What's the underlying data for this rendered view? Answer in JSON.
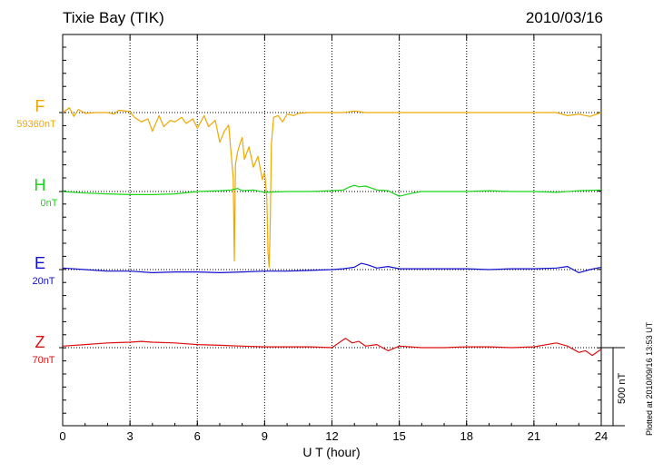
{
  "title": "Tixie Bay (TIK)",
  "date": "2010/03/16",
  "footer": "Plotted at 2010/09/16 13:53 UT",
  "chart_data": {
    "type": "line",
    "xlabel": "U T (hour)",
    "xlim": [
      0,
      24
    ],
    "xticks": [
      "0",
      "3",
      "6",
      "9",
      "12",
      "15",
      "18",
      "21",
      "24"
    ],
    "scale_bar_label": "500 nT",
    "scale_bar_nt": 500,
    "grid": "vertical dotted at each 3 hours",
    "series": [
      {
        "name": "F",
        "baseline_label": "59360nT",
        "color": "#f0a800",
        "x": [
          0,
          0.3,
          0.5,
          0.7,
          1.0,
          1.5,
          2.0,
          2.3,
          2.5,
          3.0,
          3.2,
          3.5,
          3.8,
          4.0,
          4.3,
          4.5,
          4.8,
          5.0,
          5.3,
          5.5,
          5.8,
          6.0,
          6.3,
          6.5,
          6.8,
          7.0,
          7.2,
          7.4,
          7.6,
          7.65,
          7.7,
          7.8,
          7.9,
          8.0,
          8.1,
          8.3,
          8.5,
          8.7,
          8.9,
          9.0,
          9.1,
          9.15,
          9.2,
          9.25,
          9.3,
          9.4,
          9.6,
          9.8,
          10.0,
          10.3,
          10.5,
          11.0,
          11.5,
          12.0,
          12.5,
          13.0,
          13.5,
          14.0,
          15.0,
          16.0,
          17.0,
          18.0,
          19.0,
          20.0,
          21.0,
          22.0,
          22.5,
          23.0,
          23.5,
          24.0
        ],
        "values": [
          0,
          30,
          -25,
          20,
          -5,
          0,
          0,
          -10,
          15,
          5,
          -30,
          -60,
          -40,
          -120,
          -20,
          -90,
          -50,
          -60,
          -30,
          -70,
          -40,
          -100,
          -20,
          -90,
          -50,
          -190,
          -120,
          -80,
          -420,
          -950,
          -330,
          -250,
          -200,
          -160,
          -300,
          -220,
          -350,
          -280,
          -430,
          -380,
          -550,
          -900,
          -990,
          -700,
          -200,
          -30,
          -20,
          -60,
          -10,
          -20,
          -5,
          0,
          0,
          0,
          0,
          10,
          0,
          0,
          0,
          0,
          0,
          0,
          0,
          0,
          0,
          0,
          -20,
          -10,
          -25,
          0
        ]
      },
      {
        "name": "H",
        "baseline_label": "0nT",
        "color": "#19d619",
        "x": [
          0,
          1.0,
          2.0,
          3.0,
          4.0,
          5.0,
          6.0,
          7.0,
          7.5,
          7.8,
          8.0,
          8.5,
          9.0,
          10.0,
          11.0,
          12.0,
          12.5,
          12.8,
          13.0,
          13.2,
          13.5,
          13.8,
          14.0,
          14.5,
          15.0,
          15.3,
          15.6,
          16.0,
          17.0,
          18.0,
          19.0,
          20.0,
          21.0,
          22.0,
          23.0,
          24.0
        ],
        "values": [
          0,
          -10,
          -15,
          -20,
          -20,
          -15,
          0,
          5,
          10,
          20,
          5,
          10,
          -5,
          0,
          0,
          5,
          10,
          30,
          40,
          30,
          35,
          20,
          10,
          5,
          -30,
          -20,
          -10,
          0,
          0,
          0,
          5,
          0,
          0,
          -5,
          5,
          10
        ]
      },
      {
        "name": "E",
        "baseline_label": "20nT",
        "color": "#1010cc",
        "x": [
          0,
          1.0,
          2.0,
          3.0,
          4.0,
          5.0,
          6.0,
          7.0,
          8.0,
          9.0,
          10.0,
          11.0,
          12.0,
          12.5,
          13.0,
          13.3,
          13.6,
          14.0,
          14.5,
          15.0,
          16.0,
          17.0,
          18.0,
          19.0,
          20.0,
          21.0,
          22.0,
          22.5,
          23.0,
          23.5,
          24.0
        ],
        "values": [
          10,
          0,
          -10,
          -10,
          -20,
          -15,
          -15,
          -20,
          -15,
          -10,
          -10,
          -5,
          0,
          5,
          15,
          40,
          30,
          10,
          20,
          5,
          5,
          5,
          5,
          0,
          5,
          5,
          10,
          20,
          -20,
          0,
          15
        ]
      },
      {
        "name": "Z",
        "baseline_label": "70nT",
        "color": "#dd1010",
        "x": [
          0,
          1.0,
          2.0,
          3.0,
          3.5,
          4.0,
          5.0,
          6.0,
          7.0,
          8.0,
          9.0,
          10.0,
          11.0,
          12.0,
          12.6,
          12.9,
          13.2,
          13.5,
          14.0,
          14.5,
          15.0,
          16.0,
          17.0,
          18.0,
          19.0,
          20.0,
          21.0,
          22.0,
          22.5,
          23.0,
          23.3,
          23.6,
          24.0
        ],
        "values": [
          10,
          20,
          30,
          35,
          40,
          35,
          30,
          20,
          15,
          10,
          5,
          5,
          5,
          0,
          60,
          30,
          40,
          10,
          20,
          -20,
          10,
          0,
          0,
          5,
          5,
          0,
          5,
          30,
          10,
          -30,
          -20,
          -50,
          -10
        ]
      }
    ]
  }
}
